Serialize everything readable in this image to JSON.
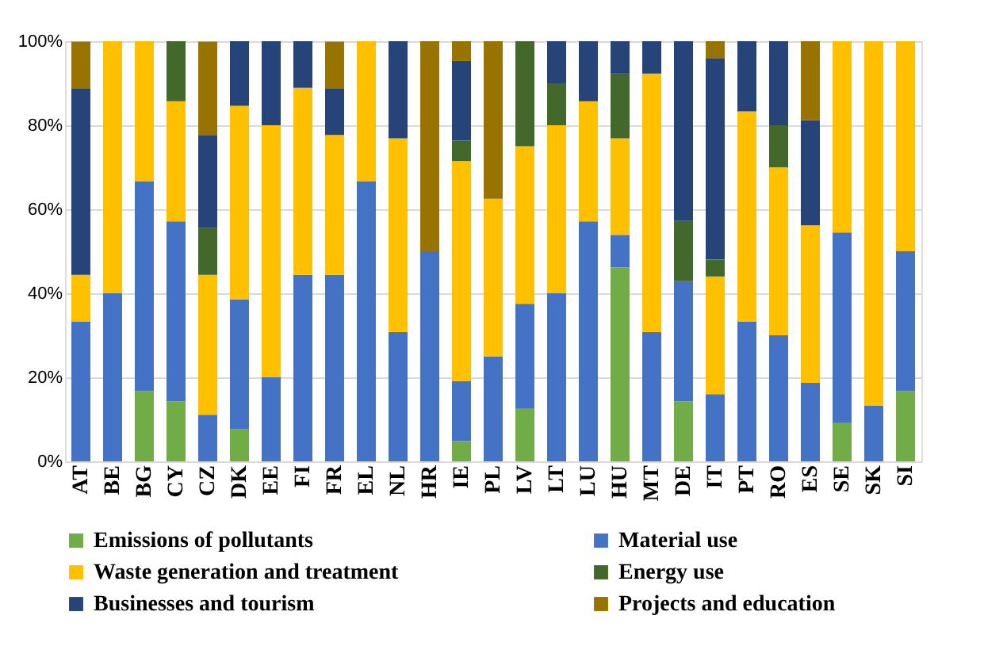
{
  "chart_data": {
    "type": "bar",
    "stacked": true,
    "categories": [
      "AT",
      "BE",
      "BG",
      "CY",
      "CZ",
      "DK",
      "EE",
      "FI",
      "FR",
      "EL",
      "NL",
      "HR",
      "IE",
      "PL",
      "LV",
      "LT",
      "LU",
      "HU",
      "MT",
      "DE",
      "IT",
      "PT",
      "RO",
      "ES",
      "SE",
      "SK",
      "SI"
    ],
    "series": [
      {
        "name": "Emissions of pollutants",
        "color": "#70ad47",
        "values": [
          0,
          0,
          16.7,
          14.3,
          0,
          7.7,
          0,
          0,
          0,
          0,
          0,
          0,
          4.8,
          0,
          12.5,
          0,
          0,
          46.2,
          0,
          14.3,
          0,
          0,
          0,
          0,
          9.1,
          0,
          16.7
        ]
      },
      {
        "name": "Material use",
        "color": "#4472c4",
        "values": [
          33.3,
          40,
          50,
          42.8,
          11.1,
          30.8,
          20,
          44.4,
          44.4,
          66.7,
          30.8,
          50,
          14.3,
          25,
          25,
          40,
          57.1,
          7.7,
          30.8,
          28.6,
          16,
          33.3,
          30,
          18.7,
          45.4,
          13.3,
          33.3
        ]
      },
      {
        "name": "Waste generation and treatment",
        "color": "#ffc000",
        "values": [
          11.1,
          60,
          33.3,
          28.6,
          33.3,
          46.1,
          60,
          44.5,
          33.3,
          33.3,
          46.1,
          0,
          52.4,
          37.5,
          37.5,
          40,
          28.6,
          23,
          61.5,
          0,
          28,
          50,
          40,
          37.5,
          45.5,
          86.7,
          50
        ]
      },
      {
        "name": "Energy use",
        "color": "#43682b",
        "values": [
          0,
          0,
          0,
          14.3,
          11.1,
          0,
          0,
          0,
          0,
          0,
          0,
          0,
          4.8,
          0,
          25,
          10,
          0,
          15.4,
          0,
          14.3,
          4,
          0,
          10,
          0,
          0,
          0,
          0
        ]
      },
      {
        "name": "Businesses and tourism",
        "color": "#264478",
        "values": [
          44.4,
          0,
          0,
          0,
          22.2,
          15.4,
          20,
          11.1,
          11.1,
          0,
          23.1,
          0,
          19,
          0,
          0,
          10,
          14.3,
          7.7,
          7.7,
          42.8,
          48,
          16.7,
          20,
          25,
          0,
          0,
          0
        ]
      },
      {
        "name": "Projects and education",
        "color": "#997300",
        "values": [
          11.1,
          0,
          0,
          0,
          22.2,
          0,
          0,
          0,
          11.1,
          0,
          0,
          50,
          4.7,
          37.5,
          0,
          0,
          0,
          0,
          0,
          0,
          4,
          0,
          0,
          18.8,
          0,
          0,
          0
        ]
      }
    ],
    "ylim": [
      0,
      100
    ],
    "yticks": [
      {
        "value": 0,
        "label": "0%"
      },
      {
        "value": 20,
        "label": "20%"
      },
      {
        "value": 40,
        "label": "40%"
      },
      {
        "value": 60,
        "label": "60%"
      },
      {
        "value": 80,
        "label": "80%"
      },
      {
        "value": 100,
        "label": "100%"
      }
    ],
    "grid": "y",
    "legend": "bottom"
  }
}
